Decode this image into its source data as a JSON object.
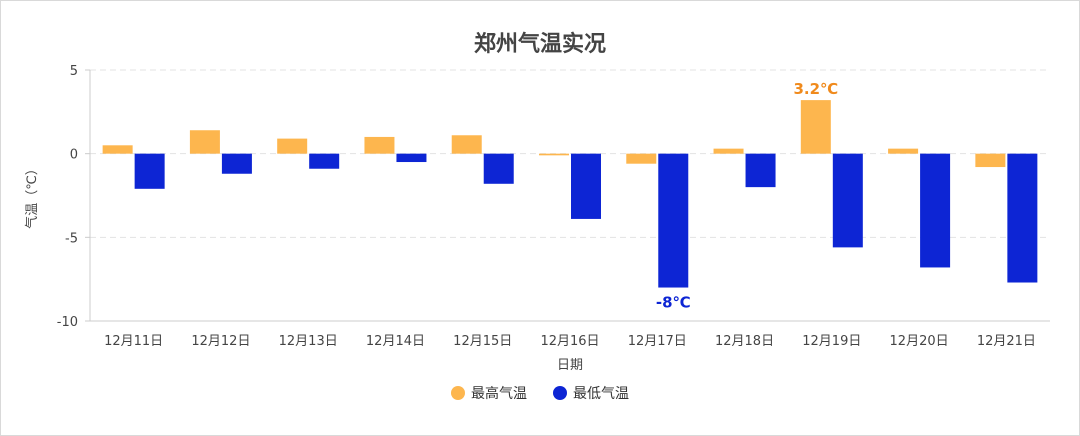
{
  "chart_data": {
    "type": "bar",
    "title": "郑州气温实况",
    "xlabel": "日期",
    "ylabel": "气温（℃）",
    "ylim": [
      -10,
      5
    ],
    "yticks": [
      5,
      0,
      -5,
      -10
    ],
    "grid": true,
    "legend_position": "bottom",
    "categories": [
      "12月11日",
      "12月12日",
      "12月13日",
      "12月14日",
      "12月15日",
      "12月16日",
      "12月17日",
      "12月18日",
      "12月19日",
      "12月20日",
      "12月21日"
    ],
    "series": [
      {
        "name": "最高气温",
        "color": "#FDB64E",
        "values": [
          0.5,
          1.4,
          0.9,
          1.0,
          1.1,
          -0.1,
          -0.6,
          0.3,
          3.2,
          0.3,
          -0.8
        ]
      },
      {
        "name": "最低气温",
        "color": "#0D25D4",
        "values": [
          -2.1,
          -1.2,
          -0.9,
          -0.5,
          -1.8,
          -3.9,
          -8.0,
          -2.0,
          -5.6,
          -6.8,
          -7.7
        ]
      }
    ],
    "annotations": [
      {
        "series": 0,
        "index": 8,
        "text": "3.2℃",
        "color": "#F08A1C"
      },
      {
        "series": 1,
        "index": 6,
        "text": "-8℃",
        "color": "#0D25D4"
      }
    ]
  }
}
